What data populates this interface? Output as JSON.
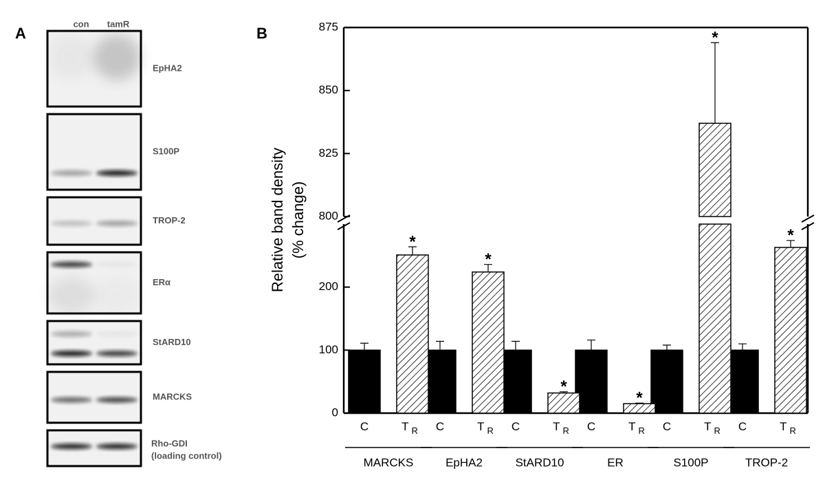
{
  "panel_a": {
    "label": "A",
    "lanes": [
      "con",
      "tamR"
    ],
    "blots": [
      {
        "name": "EpHA2"
      },
      {
        "name": "S100P"
      },
      {
        "name": "TROP-2"
      },
      {
        "name": "ERα"
      },
      {
        "name": "StARD10"
      },
      {
        "name": "MARCKS"
      },
      {
        "name": "Rho-GDI",
        "note": "(loading control)"
      }
    ]
  },
  "chart_data": {
    "type": "bar",
    "panel_label": "B",
    "y_label": [
      "Relative band density",
      "(% change)"
    ],
    "categories": [
      "MARCKS",
      "EpHA2",
      "StARD10",
      "ER",
      "S100P",
      "TROP-2"
    ],
    "series": [
      {
        "name": "C",
        "color": "#000000",
        "values": [
          100,
          100,
          100,
          100,
          100,
          100
        ],
        "errors": [
          11,
          14,
          14,
          16,
          8,
          10
        ]
      },
      {
        "name": "T",
        "subscript": "R",
        "color": "#ffffff",
        "hatch": true,
        "marker": "*",
        "values": [
          251,
          224,
          32,
          15,
          837,
          263
        ],
        "errors": [
          13,
          12,
          2,
          1,
          32,
          11
        ]
      }
    ],
    "ylim": [
      0,
      875
    ],
    "axis_break": [
      300,
      800
    ],
    "yticks": [
      0,
      100,
      200,
      800,
      825,
      850,
      875
    ]
  }
}
